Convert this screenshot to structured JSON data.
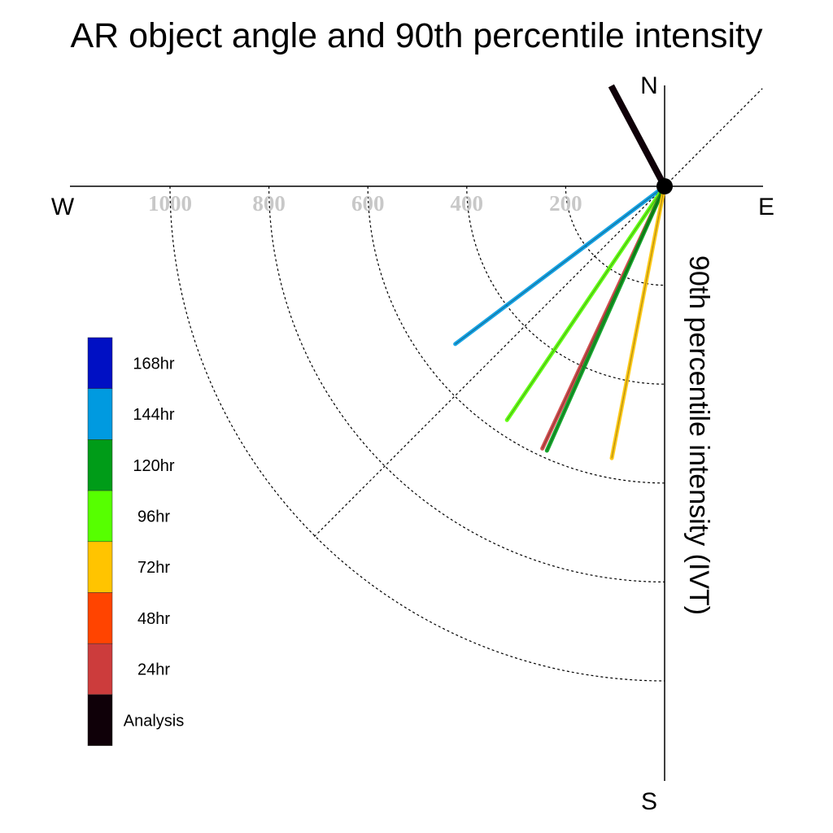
{
  "chart_data": {
    "type": "polar-vector",
    "title": "AR object angle and 90th percentile intensity",
    "axis_title": "90th percentile intensity (IVT)",
    "compass": {
      "north": "N",
      "south": "S",
      "east": "E",
      "west": "W"
    },
    "ring_values": [
      200,
      400,
      600,
      800,
      1000
    ],
    "ring_labels": [
      "200",
      "400",
      "600",
      "800",
      "1000"
    ],
    "radial_max": 1000,
    "grid": true,
    "diagonal_guides_deg": [
      45,
      225
    ],
    "legend": [
      {
        "label": "168hr",
        "color": "#0010c4"
      },
      {
        "label": "144hr",
        "color": "#009ae0"
      },
      {
        "label": "120hr",
        "color": "#009c18"
      },
      {
        "label": "96hr",
        "color": "#56ff00"
      },
      {
        "label": "72hr",
        "color": "#ffc400"
      },
      {
        "label": "48hr",
        "color": "#ff4400"
      },
      {
        "label": "24hr",
        "color": "#cc3c3c"
      },
      {
        "label": "Analysis",
        "color": "#0f0008"
      }
    ],
    "legend_placement": "lower-left",
    "series": [
      {
        "name": "Analysis",
        "angle_deg": 332,
        "intensity": 230,
        "color": "#0f0008"
      },
      {
        "name": "144hr",
        "angle_deg": 233,
        "intensity": 530,
        "color": "#009ae0"
      },
      {
        "name": "96hr",
        "angle_deg": 214,
        "intensity": 570,
        "color": "#56ff00"
      },
      {
        "name": "24hr",
        "angle_deg": 205,
        "intensity": 585,
        "color": "#cc3c3c"
      },
      {
        "name": "120hr",
        "angle_deg": 204,
        "intensity": 585,
        "color": "#009c18"
      },
      {
        "name": "72hr",
        "angle_deg": 191,
        "intensity": 560,
        "color": "#ffc400"
      }
    ]
  }
}
